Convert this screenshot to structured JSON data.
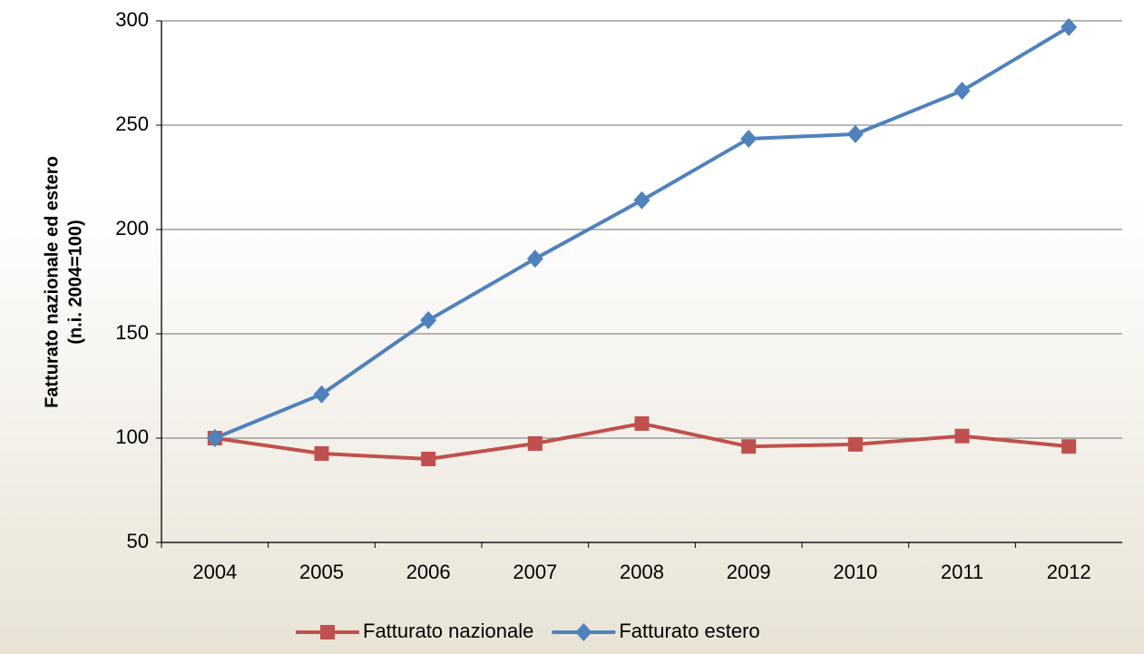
{
  "chart_data": {
    "type": "line",
    "y_label": [
      "Fatturato nazionale ed estero",
      "(n.i. 2004=100)"
    ],
    "categories": [
      "2004",
      "2005",
      "2006",
      "2007",
      "2008",
      "2009",
      "2010",
      "2011",
      "2012"
    ],
    "series": [
      {
        "name": "Fatturato nazionale",
        "color": "#c0504d",
        "marker": "square",
        "values": [
          100,
          92.6,
          90,
          97.4,
          107,
          96,
          97,
          101,
          96
        ]
      },
      {
        "name": "Fatturato estero",
        "color": "#4f81bd",
        "marker": "diamond",
        "values": [
          100,
          121,
          156.5,
          186,
          214,
          243.5,
          245.7,
          266.5,
          297
        ]
      }
    ],
    "ylim": [
      50,
      300
    ],
    "yticks": [
      50,
      100,
      150,
      200,
      250,
      300
    ],
    "grid": true,
    "legend": "bottom"
  }
}
